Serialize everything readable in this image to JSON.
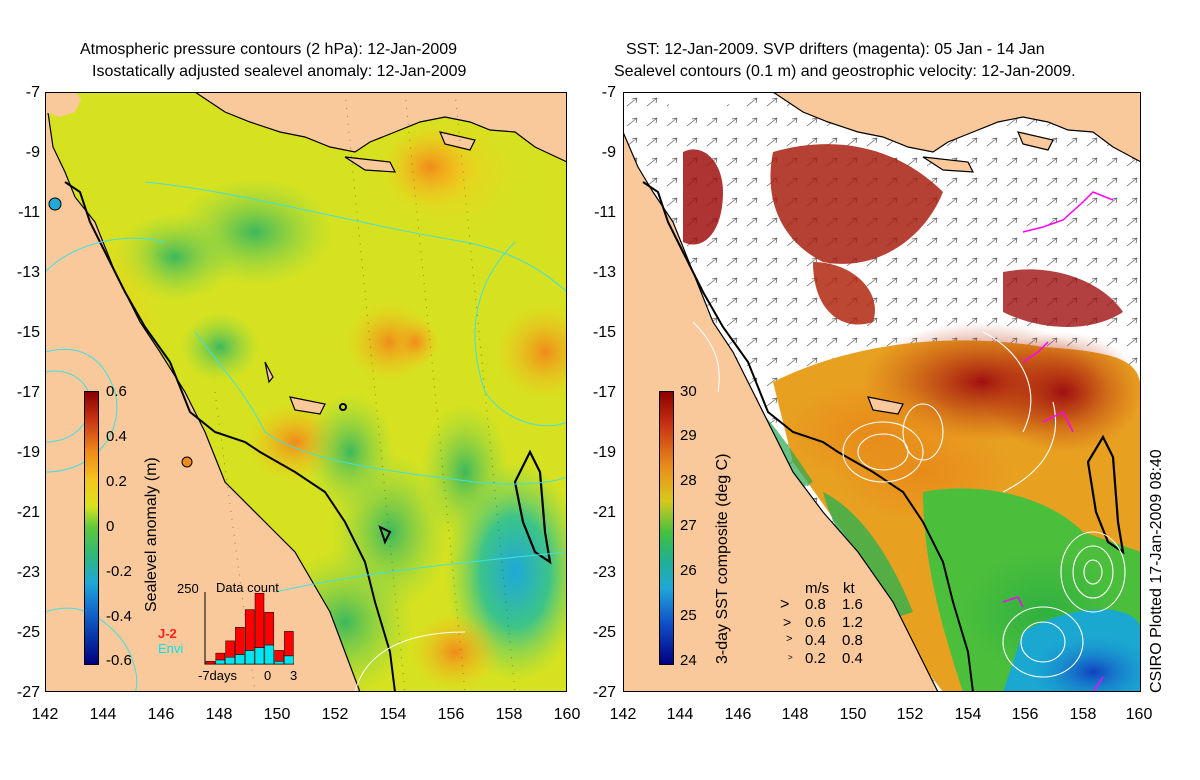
{
  "left_panel": {
    "title_line1": "Atmospheric pressure contours (2 hPa): 12-Jan-2009",
    "title_line2": "Isostatically adjusted sealevel anomaly: 12-Jan-2009",
    "y_ticks": [
      "-7",
      "-9",
      "-11",
      "-13",
      "-15",
      "-17",
      "-19",
      "-21",
      "-23",
      "-25",
      "-27"
    ],
    "x_ticks": [
      "142",
      "144",
      "146",
      "148",
      "150",
      "152",
      "154",
      "156",
      "158",
      "160"
    ],
    "colorbar": {
      "label": "Sealevel anomaly (m)",
      "ticks": [
        "0.6",
        "0.4",
        "0.2",
        "0",
        "-0.2",
        "-0.4",
        "-0.6"
      ]
    },
    "histogram": {
      "title": "Data count",
      "ymax_label": "250",
      "legend_j2": "J-2",
      "legend_envi": "Envi",
      "x_label_left": "-7days",
      "x_label_zero": "0",
      "x_label_right": "3",
      "j2_color": "#ff0000",
      "envi_color": "#00e5ee",
      "bars": [
        {
          "day": -7,
          "j2": 10,
          "envi": 0
        },
        {
          "day": -6,
          "j2": 25,
          "envi": 15
        },
        {
          "day": -5,
          "j2": 60,
          "envi": 25
        },
        {
          "day": -4,
          "j2": 100,
          "envi": 35
        },
        {
          "day": -3,
          "j2": 150,
          "envi": 50
        },
        {
          "day": -2,
          "j2": 200,
          "envi": 60
        },
        {
          "day": -1,
          "j2": 120,
          "envi": 70
        },
        {
          "day": 0,
          "j2": 40,
          "envi": 10
        },
        {
          "day": 1,
          "j2": 90,
          "envi": 30
        }
      ]
    }
  },
  "right_panel": {
    "title_line1": "SST: 12-Jan-2009. SVP drifters (magenta): 05 Jan - 14 Jan",
    "title_line2": "Sealevel contours (0.1 m) and geostrophic velocity: 12-Jan-2009.",
    "y_ticks": [
      "-7",
      "-9",
      "-11",
      "-13",
      "-15",
      "-17",
      "-19",
      "-21",
      "-23",
      "-25",
      "-27"
    ],
    "x_ticks": [
      "142",
      "144",
      "146",
      "148",
      "150",
      "152",
      "154",
      "156",
      "158",
      "160"
    ],
    "colorbar": {
      "label": "3-day SST composite (deg C)",
      "ticks": [
        "30",
        "29",
        "28",
        "27",
        "26",
        "25",
        "24"
      ]
    },
    "velocity_legend": {
      "header_ms": "m/s",
      "header_kt": "kt",
      "rows": [
        {
          "ms": "0.8",
          "kt": "1.6"
        },
        {
          "ms": "0.6",
          "kt": "1.2"
        },
        {
          "ms": "0.4",
          "kt": "0.8"
        },
        {
          "ms": "0.2",
          "kt": "0.4"
        }
      ]
    }
  },
  "credit": "CSIRO Plotted 17-Jan-2009 08:40",
  "colors": {
    "land": "#f9c89b",
    "coast": "#000000",
    "drifter": "#ff00ff",
    "contour_cyan": "#40e0e0"
  }
}
